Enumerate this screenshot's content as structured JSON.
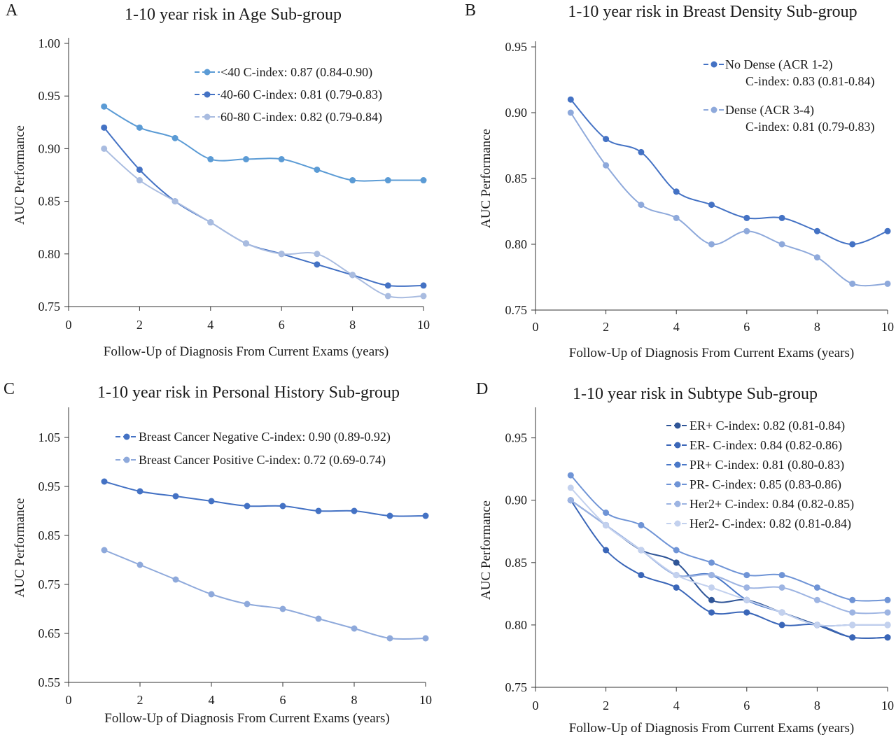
{
  "chart_data": [
    {
      "type": "line",
      "panel": "A",
      "title": "1-10 year risk in Age Sub-group",
      "xlabel": "Follow-Up of Diagnosis From Current Exams (years)",
      "ylabel": "AUC Performance",
      "xlim": [
        0,
        10
      ],
      "ylim": [
        0.75,
        1.0
      ],
      "xticks": [
        0,
        2,
        4,
        6,
        8,
        10
      ],
      "yticks": [
        0.75,
        0.8,
        0.85,
        0.9,
        0.95,
        1.0
      ],
      "legend_position": "top-right",
      "x": [
        1,
        2,
        3,
        4,
        5,
        6,
        7,
        8,
        9,
        10
      ],
      "series": [
        {
          "name": "<40 C-index: 0.87 (0.84-0.90)",
          "color": "#5b9bd5",
          "values": [
            0.94,
            0.92,
            0.91,
            0.89,
            0.89,
            0.89,
            0.88,
            0.87,
            0.87,
            0.87
          ]
        },
        {
          "name": "40-60 C-index: 0.81 (0.79-0.83)",
          "color": "#4472c4",
          "values": [
            0.92,
            0.88,
            0.85,
            0.83,
            0.81,
            0.8,
            0.79,
            0.78,
            0.77,
            0.77
          ]
        },
        {
          "name": "60-80 C-index: 0.82 (0.79-0.84)",
          "color": "#a9bce0",
          "values": [
            0.9,
            0.87,
            0.85,
            0.83,
            0.81,
            0.8,
            0.8,
            0.78,
            0.76,
            0.76
          ]
        }
      ]
    },
    {
      "type": "line",
      "panel": "B",
      "title": "1-10 year risk in Breast Density Sub-group",
      "xlabel": "Follow-Up of Diagnosis From Current Exams (years)",
      "ylabel": "AUC Performance",
      "xlim": [
        0,
        10
      ],
      "ylim": [
        0.75,
        0.95
      ],
      "xticks": [
        0,
        2,
        4,
        6,
        8,
        10
      ],
      "yticks": [
        0.75,
        0.8,
        0.85,
        0.9,
        0.95
      ],
      "legend_position": "top-right",
      "x": [
        1,
        2,
        3,
        4,
        5,
        6,
        7,
        8,
        9,
        10
      ],
      "series": [
        {
          "name": "No Dense (ACR 1-2)",
          "name2": "C-index: 0.83 (0.81-0.84)",
          "color": "#4472c4",
          "values": [
            0.91,
            0.88,
            0.87,
            0.84,
            0.83,
            0.82,
            0.82,
            0.81,
            0.8,
            0.81
          ]
        },
        {
          "name": "Dense (ACR 3-4)",
          "name2": "C-index: 0.81 (0.79-0.83)",
          "color": "#8ea9db",
          "values": [
            0.9,
            0.86,
            0.83,
            0.82,
            0.8,
            0.81,
            0.8,
            0.79,
            0.77,
            0.77
          ]
        }
      ]
    },
    {
      "type": "line",
      "panel": "C",
      "title": "1-10 year risk in Personal History Sub-group",
      "xlabel": "Follow-Up of Diagnosis From Current Exams (years)",
      "ylabel": "AUC Performance",
      "xlim": [
        0,
        10
      ],
      "ylim": [
        0.55,
        1.1
      ],
      "xticks": [
        0,
        2,
        4,
        6,
        8,
        10
      ],
      "yticks": [
        0.55,
        0.65,
        0.75,
        0.85,
        0.95,
        1.05
      ],
      "legend_position": "top-right",
      "x": [
        1,
        2,
        3,
        4,
        5,
        6,
        7,
        8,
        9,
        10
      ],
      "series": [
        {
          "name": "Breast Cancer Negative  C-index: 0.90 (0.89-0.92)",
          "color": "#4472c4",
          "values": [
            0.96,
            0.94,
            0.93,
            0.92,
            0.91,
            0.91,
            0.9,
            0.9,
            0.89,
            0.89
          ]
        },
        {
          "name": "Breast Cancer Positive C-index: 0.72 (0.69-0.74)",
          "color": "#8ea9db",
          "values": [
            0.82,
            0.79,
            0.76,
            0.73,
            0.71,
            0.7,
            0.68,
            0.66,
            0.64,
            0.64
          ]
        }
      ]
    },
    {
      "type": "line",
      "panel": "D",
      "title": "1-10 year risk in Subtype Sub-group",
      "xlabel": "Follow-Up of Diagnosis From Current Exams (years)",
      "ylabel": "AUC Performance",
      "xlim": [
        0,
        10
      ],
      "ylim": [
        0.75,
        0.97
      ],
      "xticks": [
        0,
        2,
        4,
        6,
        8,
        10
      ],
      "yticks": [
        0.75,
        0.8,
        0.85,
        0.9,
        0.95
      ],
      "legend_position": "top-right",
      "x": [
        1,
        2,
        3,
        4,
        5,
        6,
        7,
        8,
        9,
        10
      ],
      "series": [
        {
          "name": "ER+ C-index: 0.82 (0.81-0.84)",
          "color": "#2f5597",
          "values": [
            0.9,
            0.88,
            0.86,
            0.85,
            0.82,
            0.82,
            0.81,
            0.8,
            0.79,
            0.79
          ]
        },
        {
          "name": "ER- C-index: 0.84 (0.82-0.86)",
          "color": "#3a66b8",
          "values": [
            0.9,
            0.86,
            0.84,
            0.83,
            0.81,
            0.81,
            0.8,
            0.8,
            0.79,
            0.79
          ]
        },
        {
          "name": "PR+ C-index: 0.81 (0.80-0.83)",
          "color": "#4a78c8",
          "values": [
            0.9,
            0.88,
            0.86,
            0.84,
            0.84,
            0.82,
            0.81,
            0.8,
            0.8,
            0.8
          ]
        },
        {
          "name": "PR- C-index: 0.85 (0.83-0.86)",
          "color": "#6f94d6",
          "values": [
            0.92,
            0.89,
            0.88,
            0.86,
            0.85,
            0.84,
            0.84,
            0.83,
            0.82,
            0.82
          ]
        },
        {
          "name": "Her2+ C-index: 0.84 (0.82-0.85)",
          "color": "#9db4e2",
          "values": [
            0.9,
            0.88,
            0.86,
            0.84,
            0.84,
            0.83,
            0.83,
            0.82,
            0.81,
            0.81
          ]
        },
        {
          "name": "Her2- C-index: 0.82 (0.81-0.84)",
          "color": "#c3d1ee",
          "values": [
            0.91,
            0.88,
            0.86,
            0.84,
            0.83,
            0.82,
            0.81,
            0.8,
            0.8,
            0.8
          ]
        }
      ]
    }
  ]
}
